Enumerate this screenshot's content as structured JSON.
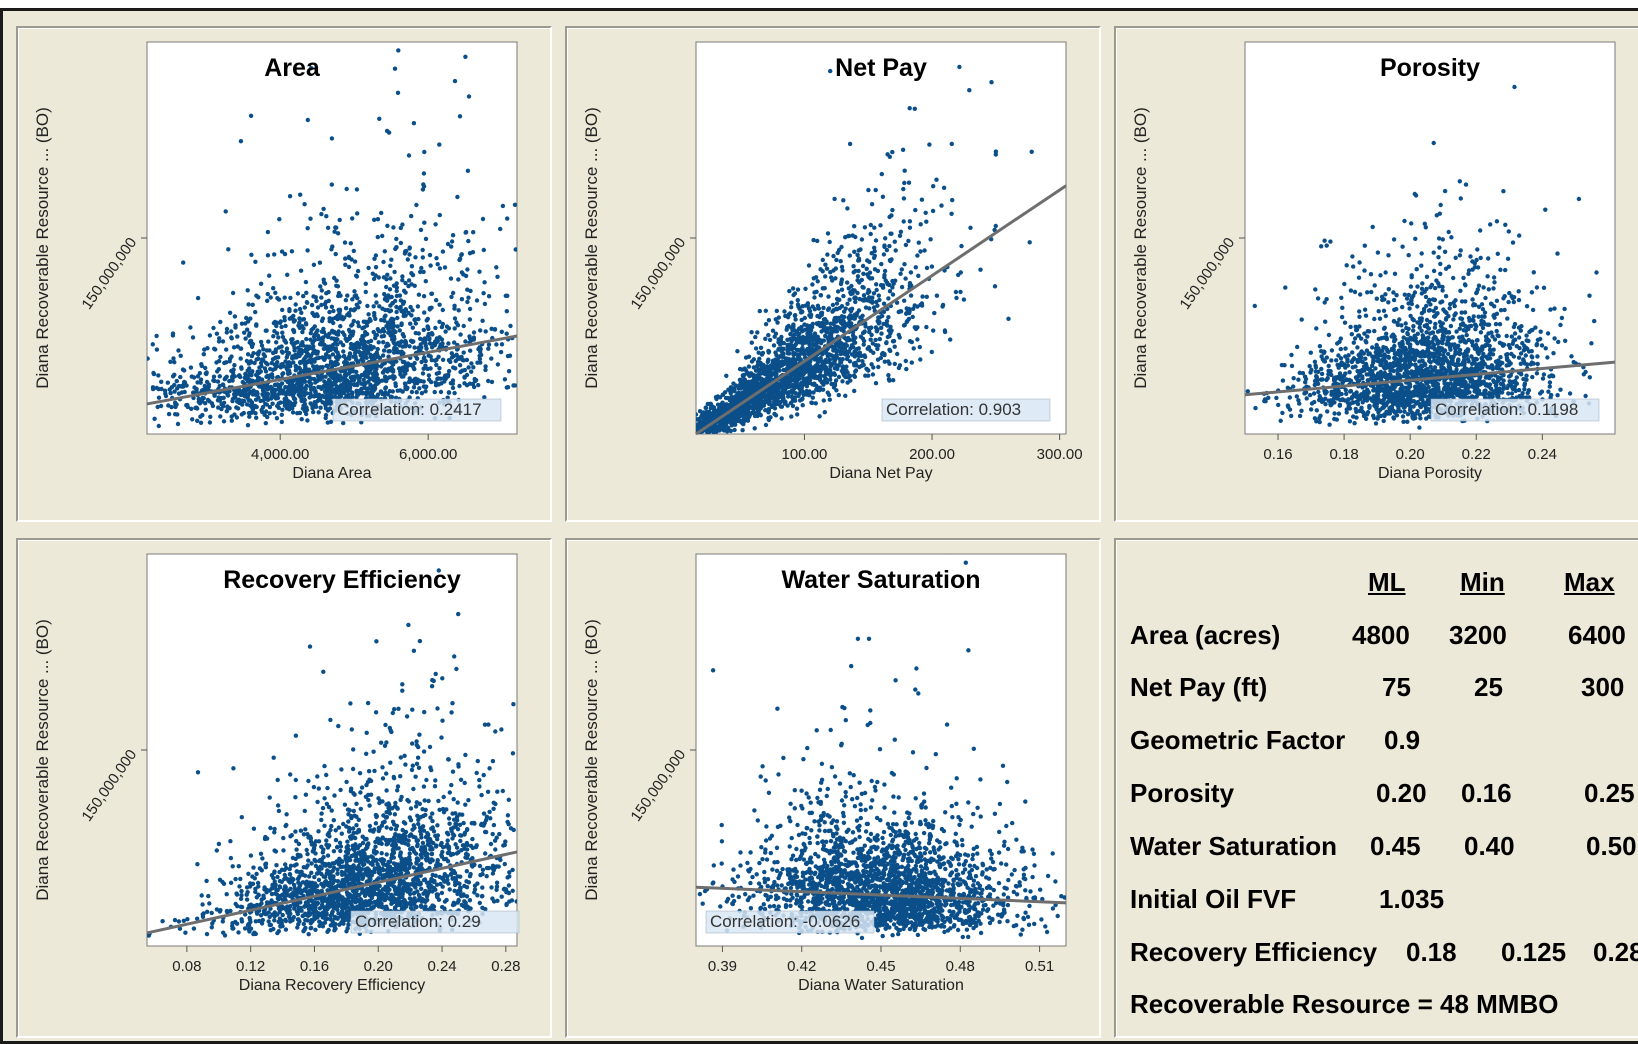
{
  "y_axis_label": "Diana Recoverable Resource ... (BO)",
  "y_tick_label": "150,000,000",
  "chart_data": [
    {
      "type": "scatter",
      "title": "Area",
      "xlabel": "Diana Area",
      "x_ticks": [
        4000,
        6000
      ],
      "x_tick_labels": [
        "4,000.00",
        "6,000.00"
      ],
      "xlim": [
        2200,
        7200
      ],
      "ylim": [
        0,
        300000000
      ],
      "y_ticks": [
        150000000
      ],
      "correlation_label": "Correlation: 0.2417",
      "trend_line": {
        "x": [
          2200,
          7200
        ],
        "y": [
          23000000,
          75000000
        ]
      },
      "cloud": {
        "x_center": 4800,
        "x_spread": 1100,
        "x_min": 2200,
        "x_max": 7200
      }
    },
    {
      "type": "scatter",
      "title": "Net Pay",
      "xlabel": "Diana Net Pay",
      "x_ticks": [
        100,
        200,
        300
      ],
      "x_tick_labels": [
        "100.00",
        "200.00",
        "300.00"
      ],
      "xlim": [
        15,
        305
      ],
      "ylim": [
        0,
        300000000
      ],
      "y_ticks": [
        150000000
      ],
      "correlation_label": "Correlation: 0.903",
      "trend_line": {
        "x": [
          15,
          305
        ],
        "y": [
          0,
          190000000
        ]
      },
      "cloud": {
        "x_center": 75,
        "x_spread": 60,
        "x_min": 15,
        "x_max": 305
      }
    },
    {
      "type": "scatter",
      "title": "Porosity",
      "xlabel": "Diana Porosity",
      "x_ticks": [
        0.16,
        0.18,
        0.2,
        0.22,
        0.24
      ],
      "x_tick_labels": [
        "0.16",
        "0.18",
        "0.20",
        "0.22",
        "0.24"
      ],
      "xlim": [
        0.15,
        0.262
      ],
      "ylim": [
        0,
        300000000
      ],
      "y_ticks": [
        150000000
      ],
      "correlation_label": "Correlation: 0.1198",
      "trend_line": {
        "x": [
          0.15,
          0.262
        ],
        "y": [
          30000000,
          55000000
        ]
      },
      "cloud": {
        "x_center": 0.205,
        "x_spread": 0.018,
        "x_min": 0.15,
        "x_max": 0.262
      }
    },
    {
      "type": "scatter",
      "title": "Recovery Efficiency",
      "xlabel": "Diana Recovery Efficiency",
      "x_ticks": [
        0.08,
        0.12,
        0.16,
        0.2,
        0.24,
        0.28
      ],
      "x_tick_labels": [
        "0.08",
        "0.12",
        "0.16",
        "0.20",
        "0.24",
        "0.28"
      ],
      "xlim": [
        0.055,
        0.287
      ],
      "ylim": [
        0,
        300000000
      ],
      "y_ticks": [
        150000000
      ],
      "correlation_label": "Correlation: 0.29",
      "trend_line": {
        "x": [
          0.055,
          0.287
        ],
        "y": [
          10000000,
          72000000
        ]
      },
      "cloud": {
        "x_center": 0.195,
        "x_spread": 0.045,
        "x_min": 0.055,
        "x_max": 0.287
      }
    },
    {
      "type": "scatter",
      "title": "Water Saturation",
      "xlabel": "Diana Water Saturation",
      "x_ticks": [
        0.39,
        0.42,
        0.45,
        0.48,
        0.51
      ],
      "x_tick_labels": [
        "0.39",
        "0.42",
        "0.45",
        "0.48",
        "0.51"
      ],
      "xlim": [
        0.38,
        0.52
      ],
      "ylim": [
        0,
        300000000
      ],
      "y_ticks": [
        150000000
      ],
      "correlation_label": "Correlation: -0.0626",
      "trend_line": {
        "x": [
          0.38,
          0.52
        ],
        "y": [
          45000000,
          33000000
        ]
      },
      "cloud": {
        "x_center": 0.45,
        "x_spread": 0.025,
        "x_min": 0.38,
        "x_max": 0.52
      }
    }
  ],
  "summary_table": {
    "headers": [
      "ML",
      "Min",
      "Max"
    ],
    "rows": [
      {
        "label": "Area (acres)",
        "ml": "4800",
        "min": "3200",
        "max": "6400"
      },
      {
        "label": "Net Pay (ft)",
        "ml": "75",
        "min": "25",
        "max": "300"
      },
      {
        "label": "Geometric Factor",
        "ml": "0.9",
        "min": "",
        "max": ""
      },
      {
        "label": "Porosity",
        "ml": "0.20",
        "min": "0.16",
        "max": "0.25"
      },
      {
        "label": "Water Saturation",
        "ml": "0.45",
        "min": "0.40",
        "max": "0.50"
      },
      {
        "label": "Initial Oil FVF",
        "ml": "1.035",
        "min": "",
        "max": ""
      },
      {
        "label": "Recovery Efficiency",
        "ml": "0.18",
        "min": "0.125",
        "max": "0.28"
      }
    ],
    "footer": "Recoverable Resource = 48 MMBO"
  },
  "colors": {
    "points": "#0b4f8a",
    "trend": "#6e6e6e",
    "panel_bg": "#ece9d8",
    "plot_bg": "#ffffff"
  }
}
